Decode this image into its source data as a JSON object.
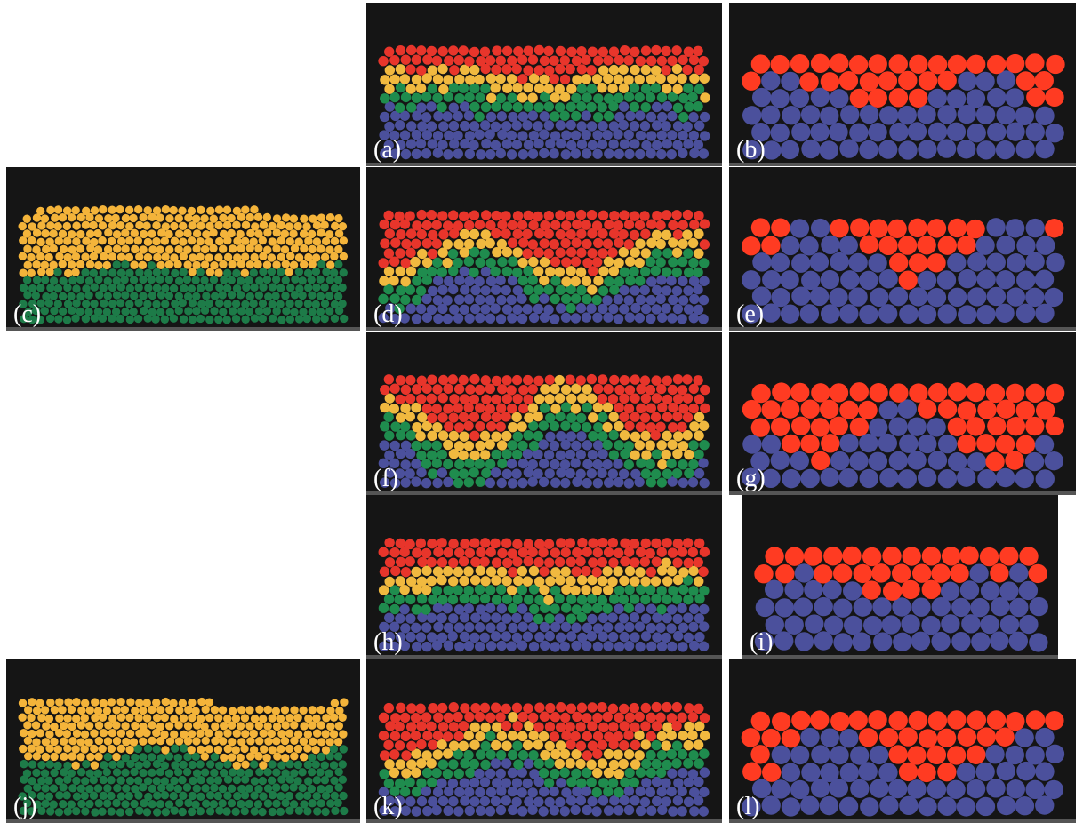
{
  "panels": [
    "(a)",
    "(b)",
    "(c)",
    "(d)",
    "(e)",
    "(f)",
    "(g)",
    "(h)",
    "(i)",
    "(j)",
    "(k)",
    "(l)"
  ]
}
